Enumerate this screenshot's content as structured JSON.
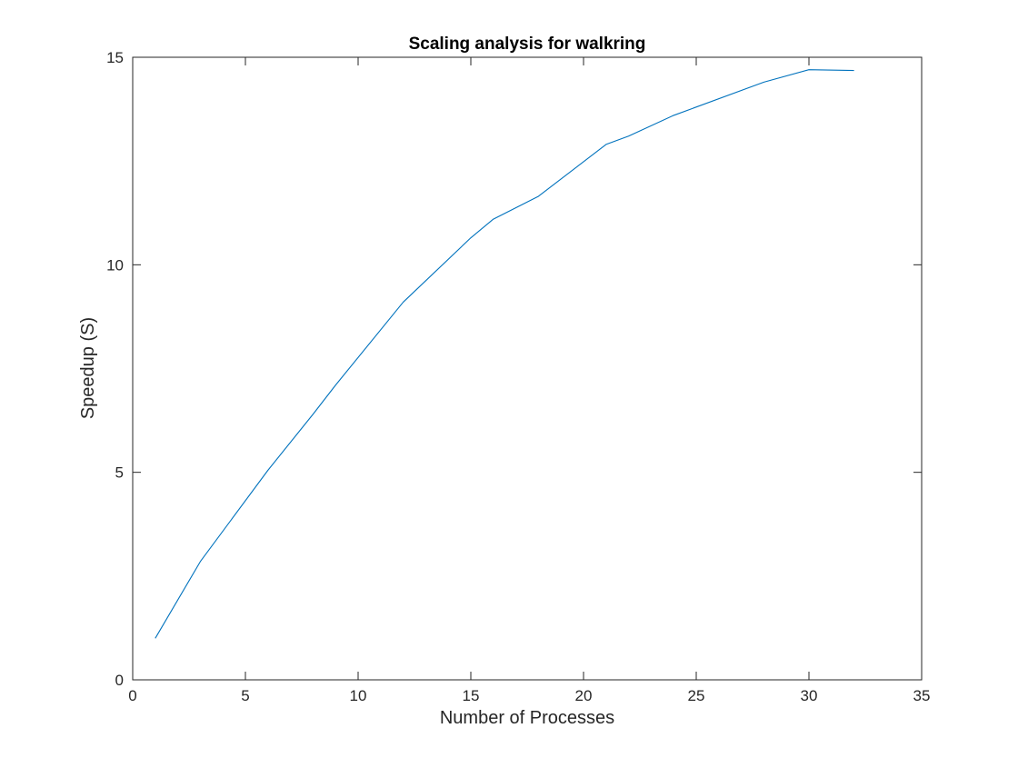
{
  "chart_data": {
    "type": "line",
    "title": "Scaling analysis for walkring",
    "xlabel": "Number of Processes",
    "ylabel": "Speedup (S)",
    "xlim": [
      0,
      35
    ],
    "ylim": [
      0,
      15
    ],
    "xticks": [
      0,
      5,
      10,
      15,
      20,
      25,
      30,
      35
    ],
    "yticks": [
      0,
      5,
      10,
      15
    ],
    "grid": false,
    "legend": "none",
    "line_color": "#0072BD",
    "series": [
      {
        "x": [
          1,
          3,
          6,
          8,
          9,
          12,
          15,
          16,
          18,
          21,
          22,
          24,
          28,
          30,
          32
        ],
        "y": [
          1.0,
          2.85,
          5.05,
          6.4,
          7.1,
          9.1,
          10.65,
          11.1,
          11.65,
          12.9,
          13.1,
          13.6,
          14.4,
          14.7,
          14.68
        ]
      }
    ]
  }
}
